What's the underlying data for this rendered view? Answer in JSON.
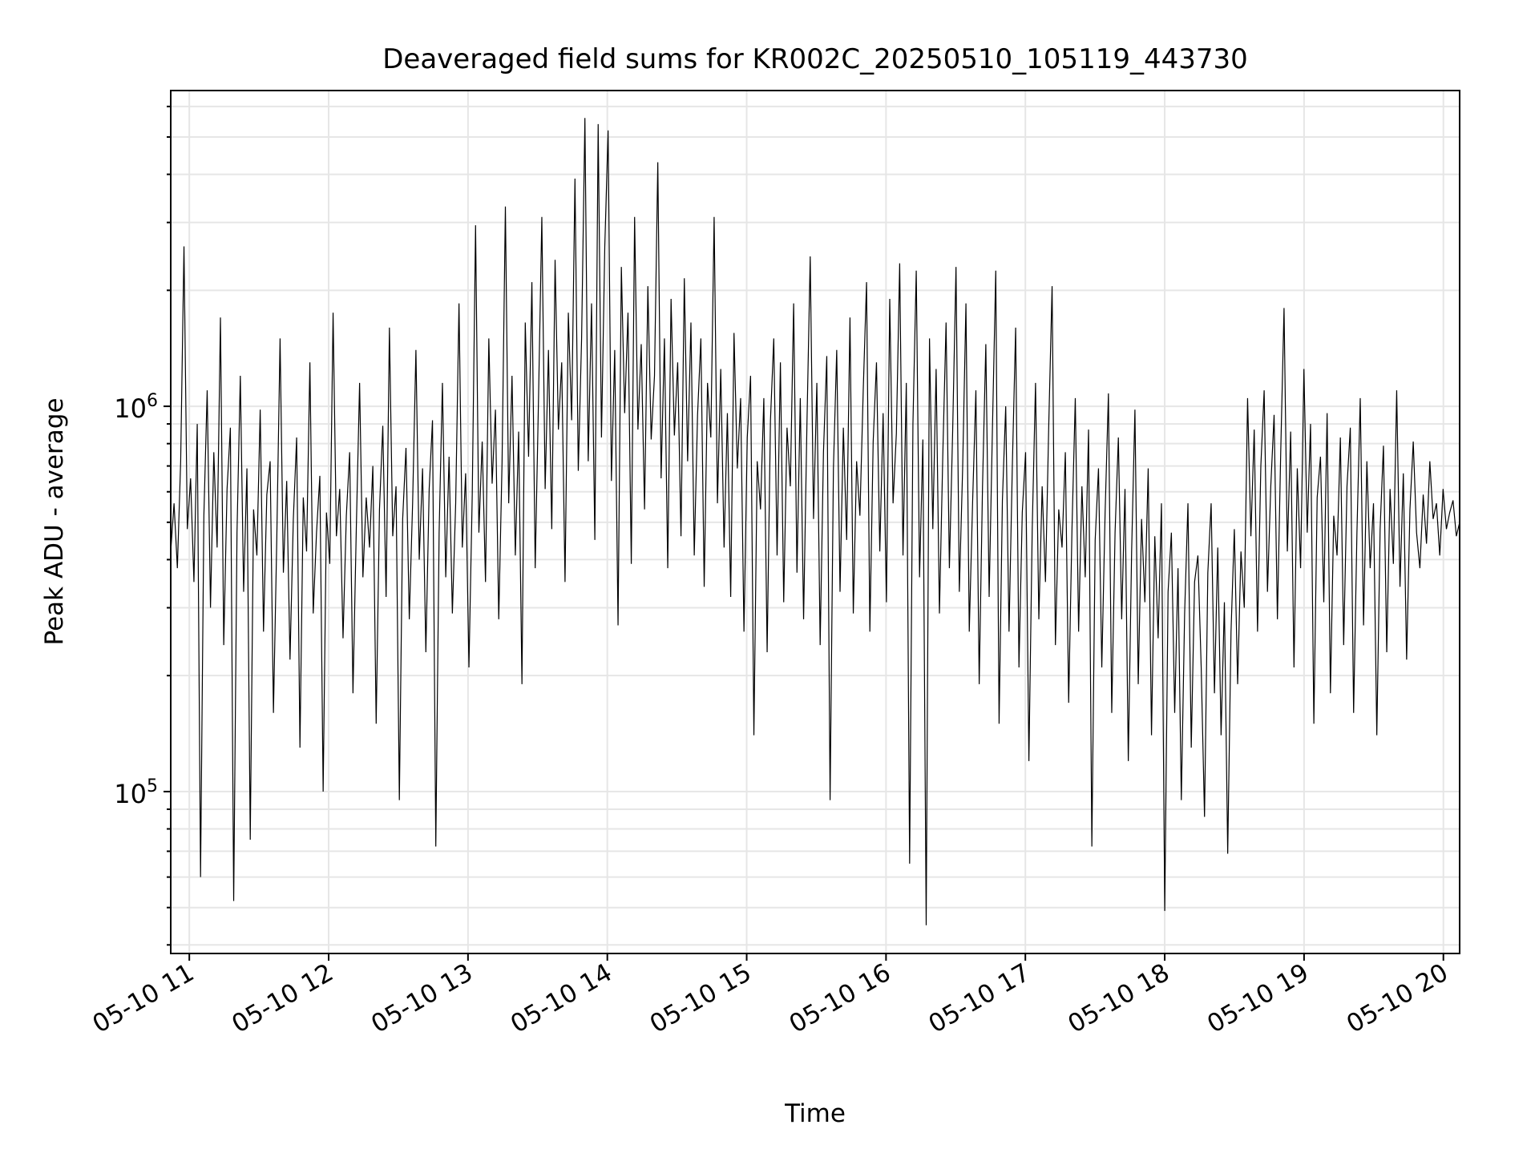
{
  "chart_data": {
    "type": "line",
    "title": "Deaveraged field sums for KR002C_20250510_105119_443730",
    "xlabel": "Time",
    "ylabel": "Peak ADU - average",
    "yscale": "log",
    "xlim": [
      "2025-05-10 10:52",
      "2025-05-10 20:07"
    ],
    "ylim": [
      38000,
      6600000
    ],
    "grid": true,
    "line_color": "#000000",
    "x_ticks": [
      {
        "value": "2025-05-10 11:00",
        "label": "05-10 11"
      },
      {
        "value": "2025-05-10 12:00",
        "label": "05-10 12"
      },
      {
        "value": "2025-05-10 13:00",
        "label": "05-10 13"
      },
      {
        "value": "2025-05-10 14:00",
        "label": "05-10 14"
      },
      {
        "value": "2025-05-10 15:00",
        "label": "05-10 15"
      },
      {
        "value": "2025-05-10 16:00",
        "label": "05-10 16"
      },
      {
        "value": "2025-05-10 17:00",
        "label": "05-10 17"
      },
      {
        "value": "2025-05-10 18:00",
        "label": "05-10 18"
      },
      {
        "value": "2025-05-10 19:00",
        "label": "05-10 19"
      },
      {
        "value": "2025-05-10 20:00",
        "label": "05-10 20"
      }
    ],
    "y_ticks": [
      {
        "value": 100000,
        "label_base": "10",
        "label_exp": "5"
      },
      {
        "value": 1000000,
        "label_base": "10",
        "label_exp": "6"
      }
    ],
    "series": [
      {
        "x_start": "2025-05-10 10:52",
        "x_end": "2025-05-10 20:07",
        "values": [
          420000,
          560000,
          380000,
          720000,
          2600000,
          480000,
          650000,
          350000,
          900000,
          60000,
          520000,
          1100000,
          300000,
          760000,
          430000,
          1700000,
          240000,
          610000,
          880000,
          52000,
          470000,
          1200000,
          330000,
          690000,
          75000,
          540000,
          410000,
          980000,
          260000,
          590000,
          720000,
          160000,
          450000,
          1500000,
          370000,
          640000,
          220000,
          510000,
          830000,
          130000,
          580000,
          420000,
          1300000,
          290000,
          470000,
          660000,
          100000,
          530000,
          390000,
          1750000,
          460000,
          610000,
          250000,
          520000,
          760000,
          180000,
          480000,
          1150000,
          360000,
          580000,
          430000,
          700000,
          150000,
          540000,
          890000,
          320000,
          1600000,
          460000,
          620000,
          95000,
          510000,
          780000,
          280000,
          560000,
          1400000,
          400000,
          690000,
          230000,
          610000,
          920000,
          72000,
          470000,
          1150000,
          360000,
          740000,
          290000,
          560000,
          1850000,
          430000,
          670000,
          210000,
          590000,
          2950000,
          470000,
          810000,
          350000,
          1500000,
          630000,
          980000,
          280000,
          720000,
          3300000,
          560000,
          1200000,
          410000,
          860000,
          190000,
          1650000,
          740000,
          2100000,
          380000,
          1050000,
          3100000,
          610000,
          1400000,
          480000,
          2400000,
          870000,
          1300000,
          350000,
          1750000,
          920000,
          3900000,
          680000,
          1500000,
          5600000,
          720000,
          1850000,
          450000,
          5400000,
          830000,
          2600000,
          5200000,
          640000,
          1400000,
          270000,
          2300000,
          960000,
          1750000,
          390000,
          3100000,
          870000,
          1450000,
          540000,
          2050000,
          820000,
          1200000,
          4300000,
          650000,
          1500000,
          380000,
          1900000,
          840000,
          1300000,
          460000,
          2150000,
          720000,
          1650000,
          410000,
          950000,
          1500000,
          340000,
          1150000,
          830000,
          3100000,
          560000,
          1250000,
          430000,
          960000,
          320000,
          1550000,
          690000,
          1050000,
          260000,
          830000,
          1200000,
          140000,
          720000,
          540000,
          1050000,
          230000,
          920000,
          1500000,
          410000,
          1300000,
          310000,
          880000,
          620000,
          1850000,
          370000,
          1050000,
          280000,
          890000,
          2450000,
          510000,
          1150000,
          240000,
          760000,
          1350000,
          95000,
          690000,
          1400000,
          330000,
          880000,
          450000,
          1700000,
          290000,
          720000,
          520000,
          1100000,
          2100000,
          260000,
          810000,
          1300000,
          420000,
          960000,
          310000,
          1900000,
          560000,
          850000,
          2350000,
          410000,
          1150000,
          65000,
          900000,
          2250000,
          360000,
          820000,
          45000,
          1500000,
          480000,
          1250000,
          290000,
          740000,
          1650000,
          380000,
          870000,
          2300000,
          330000,
          690000,
          1850000,
          260000,
          560000,
          1100000,
          190000,
          620000,
          1450000,
          320000,
          880000,
          2250000,
          150000,
          570000,
          1000000,
          260000,
          700000,
          1600000,
          210000,
          530000,
          760000,
          120000,
          480000,
          1150000,
          280000,
          620000,
          350000,
          900000,
          2050000,
          240000,
          540000,
          430000,
          760000,
          170000,
          480000,
          1050000,
          260000,
          620000,
          360000,
          870000,
          72000,
          450000,
          690000,
          210000,
          530000,
          1080000,
          160000,
          470000,
          830000,
          280000,
          610000,
          120000,
          420000,
          980000,
          190000,
          510000,
          310000,
          690000,
          140000,
          460000,
          250000,
          560000,
          49000,
          330000,
          470000,
          160000,
          380000,
          95000,
          290000,
          560000,
          130000,
          350000,
          410000,
          210000,
          86000,
          370000,
          560000,
          180000,
          430000,
          140000,
          310000,
          69000,
          260000,
          480000,
          190000,
          420000,
          300000,
          1050000,
          460000,
          870000,
          260000,
          700000,
          1100000,
          330000,
          620000,
          950000,
          280000,
          760000,
          1800000,
          420000,
          860000,
          210000,
          690000,
          380000,
          1250000,
          470000,
          900000,
          150000,
          580000,
          740000,
          310000,
          960000,
          180000,
          520000,
          410000,
          830000,
          240000,
          620000,
          880000,
          160000,
          470000,
          1050000,
          270000,
          720000,
          380000,
          560000,
          140000,
          480000,
          790000,
          230000,
          610000,
          390000,
          1100000,
          340000,
          670000,
          220000,
          540000,
          810000,
          470000,
          380000,
          590000,
          440000,
          720000,
          510000,
          560000,
          410000,
          610000,
          480000,
          530000,
          570000,
          460000,
          500000
        ]
      }
    ]
  }
}
